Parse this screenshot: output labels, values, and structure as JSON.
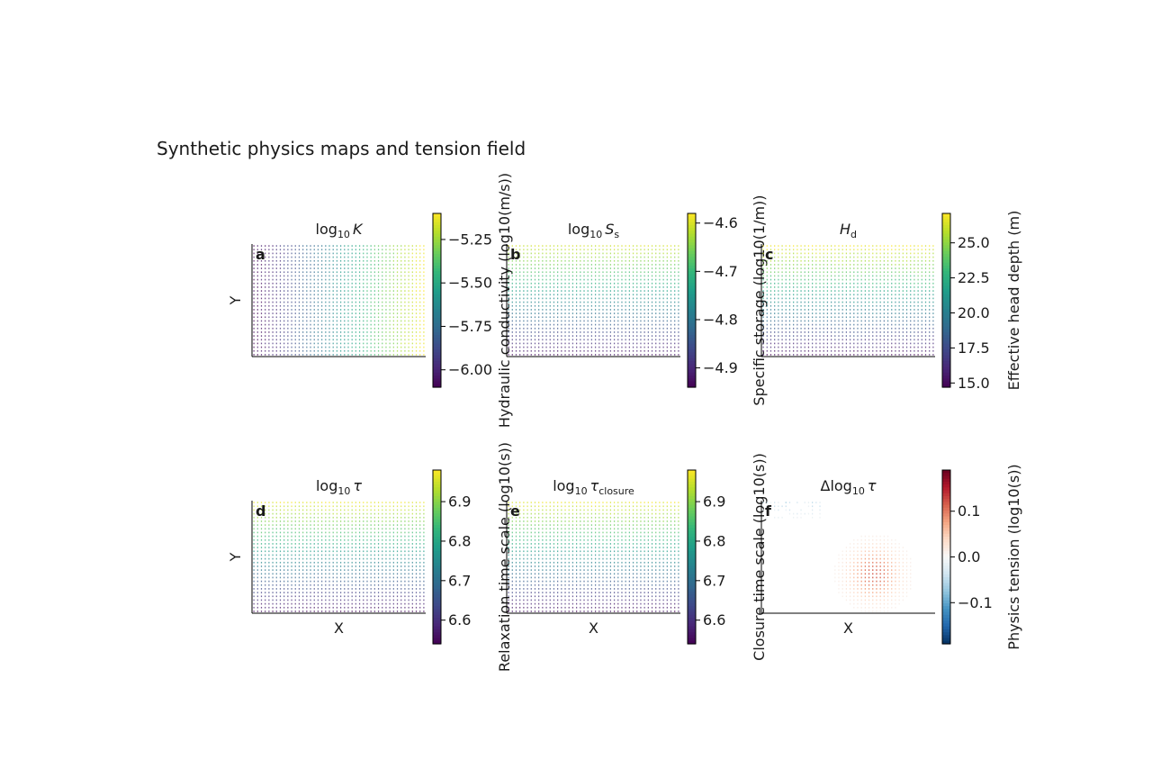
{
  "figure": {
    "title": "Synthetic physics maps and tension field"
  },
  "colors": {
    "axis": "#000000",
    "viridis": [
      "#440154",
      "#482878",
      "#3e4989",
      "#31688e",
      "#26828e",
      "#1f9e89",
      "#35b779",
      "#6ece58",
      "#b5de2b",
      "#fde725"
    ],
    "rdbu": [
      "#053061",
      "#2166ac",
      "#4393c3",
      "#92c5de",
      "#d1e5f0",
      "#f7f7f7",
      "#fddbc7",
      "#f4a582",
      "#d6604d",
      "#b2182b",
      "#67001f"
    ]
  },
  "chart_data": [
    {
      "type": "heatmap",
      "panel_letter": "a",
      "title": "log10 K",
      "title_base": "log",
      "title_sub": "10",
      "title_sym": "K",
      "xlabel": "",
      "ylabel": "Y",
      "colorbar_label": "Hydraulic conductivity (log10(m/s))",
      "colormap": "viridis",
      "clim": [
        -6.1,
        -5.1
      ],
      "ticks": [
        -6.0,
        -5.75,
        -5.5,
        -5.25
      ],
      "tick_labels": [
        "−6.00",
        "−5.75",
        "−5.50",
        "−5.25"
      ],
      "field": "gradient",
      "field_range": [
        -6.1,
        -5.1
      ],
      "field_direction": "x",
      "field_noise": 0.04
    },
    {
      "type": "heatmap",
      "panel_letter": "b",
      "title": "log10 Ss",
      "title_base": "log",
      "title_sub": "10",
      "title_sym": "S",
      "title_sym_sub": "s",
      "xlabel": "",
      "ylabel": "",
      "colorbar_label": "Specific storage (log10(1/m))",
      "colormap": "viridis",
      "clim": [
        -4.94,
        -4.58
      ],
      "ticks": [
        -4.9,
        -4.8,
        -4.7,
        -4.6
      ],
      "tick_labels": [
        "−4.9",
        "−4.8",
        "−4.7",
        "−4.6"
      ],
      "field": "gradient",
      "field_range": [
        -4.93,
        -4.6
      ],
      "field_direction": "y",
      "field_noise": 0.01
    },
    {
      "type": "heatmap",
      "panel_letter": "c",
      "title": "Hd",
      "title_base": "",
      "title_sub": "",
      "title_sym": "H",
      "title_sym_sub": "d",
      "xlabel": "",
      "ylabel": "",
      "colorbar_label": "Effective head depth (m)",
      "colormap": "viridis",
      "clim": [
        14.7,
        27.1
      ],
      "ticks": [
        15.0,
        17.5,
        20.0,
        22.5,
        25.0
      ],
      "tick_labels": [
        "15.0",
        "17.5",
        "20.0",
        "22.5",
        "25.0"
      ],
      "field": "gradient",
      "field_range": [
        15.0,
        27.0
      ],
      "field_direction": "y",
      "field_noise": 0.6
    },
    {
      "type": "heatmap",
      "panel_letter": "d",
      "title": "log10 τ",
      "title_base": "log",
      "title_sub": "10",
      "title_sym": "τ",
      "xlabel": "X",
      "ylabel": "Y",
      "colorbar_label": "Relaxation time scale (log10(s))",
      "colormap": "viridis",
      "clim": [
        6.54,
        6.98
      ],
      "ticks": [
        6.6,
        6.7,
        6.8,
        6.9
      ],
      "tick_labels": [
        "6.6",
        "6.7",
        "6.8",
        "6.9"
      ],
      "field": "gradient",
      "field_range": [
        6.55,
        6.97
      ],
      "field_direction": "y",
      "field_noise": 0.015
    },
    {
      "type": "heatmap",
      "panel_letter": "e",
      "title": "log10 τclosure",
      "title_base": "log",
      "title_sub": "10",
      "title_sym": "τ",
      "title_sym_sub": "closure",
      "xlabel": "X",
      "ylabel": "",
      "colorbar_label": "Closure time scale (log10(s))",
      "colormap": "viridis",
      "clim": [
        6.54,
        6.98
      ],
      "ticks": [
        6.6,
        6.7,
        6.8,
        6.9
      ],
      "tick_labels": [
        "6.6",
        "6.7",
        "6.8",
        "6.9"
      ],
      "field": "gradient",
      "field_range": [
        6.55,
        6.97
      ],
      "field_direction": "y",
      "field_noise": 0.015
    },
    {
      "type": "heatmap",
      "panel_letter": "f",
      "title": "Δlog10 τ",
      "title_base": "Δlog",
      "title_sub": "10",
      "title_sym": "τ",
      "xlabel": "X",
      "ylabel": "",
      "colorbar_label": "Physics tension (log10(s))",
      "colormap": "rdbu",
      "clim": [
        -0.19,
        0.19
      ],
      "ticks": [
        -0.1,
        0.0,
        0.1
      ],
      "tick_labels": [
        "−0.1",
        "0.0",
        "0.1"
      ],
      "field": "tension",
      "blob_center": [
        0.65,
        0.65
      ],
      "blob_value": 0.12
    }
  ]
}
